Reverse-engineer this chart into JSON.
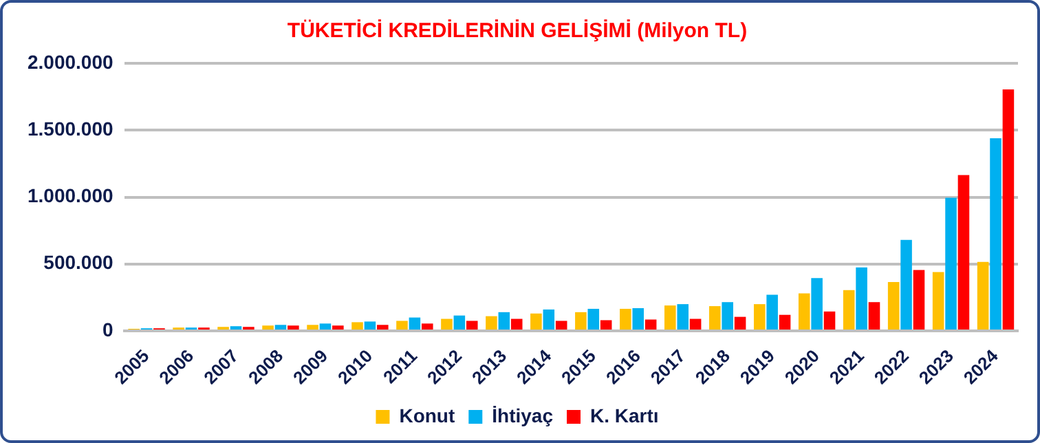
{
  "chart_data": {
    "type": "bar",
    "title": "TÜKETİCİ KREDİLERİNİN GELİŞİMİ (Milyon TL)",
    "categories": [
      "2005",
      "2006",
      "2007",
      "2008",
      "2009",
      "2010",
      "2011",
      "2012",
      "2013",
      "2014",
      "2015",
      "2016",
      "2017",
      "2018",
      "2019",
      "2020",
      "2021",
      "2022",
      "2023",
      "2024"
    ],
    "series": [
      {
        "name": "Konut",
        "color": "#ffc000",
        "values": [
          15000,
          25000,
          30000,
          40000,
          45000,
          65000,
          75000,
          90000,
          110000,
          130000,
          140000,
          165000,
          190000,
          185000,
          200000,
          280000,
          305000,
          365000,
          440000,
          515000
        ]
      },
      {
        "name": "İhtiyaç",
        "color": "#00b0f0",
        "values": [
          20000,
          25000,
          35000,
          45000,
          55000,
          70000,
          100000,
          115000,
          140000,
          160000,
          165000,
          170000,
          200000,
          215000,
          270000,
          395000,
          475000,
          680000,
          995000,
          1440000
        ]
      },
      {
        "name": "K. Kartı",
        "color": "#ff0000",
        "values": [
          20000,
          25000,
          30000,
          40000,
          40000,
          45000,
          55000,
          75000,
          90000,
          75000,
          80000,
          85000,
          90000,
          105000,
          120000,
          145000,
          215000,
          455000,
          1165000,
          1805000
        ]
      }
    ],
    "ylim": [
      0,
      2000000
    ],
    "yticks": [
      0,
      {
        "value": 500000,
        "label": "500.000"
      },
      {
        "value": 1000000,
        "label": "1.000.000"
      },
      {
        "value": 1500000,
        "label": "1.500.000"
      },
      {
        "value": 2000000,
        "label": "2.000.000"
      }
    ],
    "grid": "y",
    "legend": "bottom"
  }
}
